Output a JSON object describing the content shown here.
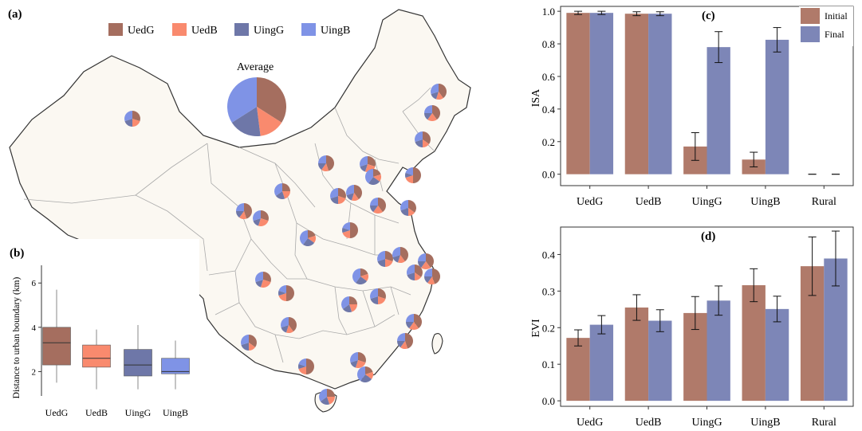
{
  "colors": {
    "UedG": "#a56e5f",
    "UedB": "#f98a6e",
    "UingG": "#6e77a8",
    "UingB": "#7f93e6",
    "initial": "#b07a6a",
    "final": "#7d86b7",
    "map_fill": "#fbf8f2",
    "map_border": "#333333",
    "province_line": "#a8a8a8",
    "axis": "#333333"
  },
  "panel_a": {
    "label": "(a)",
    "legend": [
      {
        "name": "UedG",
        "color_key": "UedG"
      },
      {
        "name": "UedB",
        "color_key": "UedB"
      },
      {
        "name": "UingG",
        "color_key": "UingG"
      },
      {
        "name": "UingB",
        "color_key": "UingB"
      }
    ],
    "average_label": "Average",
    "average_shares": [
      0.34,
      0.14,
      0.18,
      0.34
    ]
  },
  "chart_data": [
    {
      "panel": "(b)",
      "type": "box",
      "ylabel": "Distance to urban boundary (km)",
      "ylim": [
        0.9,
        6.8
      ],
      "yticks": [
        2,
        4,
        6
      ],
      "categories": [
        "UedG",
        "UedB",
        "UingG",
        "UingB"
      ],
      "boxes": [
        {
          "name": "UedG",
          "min": 1.5,
          "q1": 2.3,
          "median": 3.3,
          "q3": 4.0,
          "max": 5.7
        },
        {
          "name": "UedB",
          "min": 1.2,
          "q1": 2.2,
          "median": 2.6,
          "q3": 3.2,
          "max": 3.9
        },
        {
          "name": "UingG",
          "min": 1.2,
          "q1": 1.8,
          "median": 2.3,
          "q3": 3.0,
          "max": 4.1
        },
        {
          "name": "UingB",
          "min": 1.2,
          "q1": 1.9,
          "median": 2.0,
          "q3": 2.6,
          "max": 3.4
        }
      ]
    },
    {
      "panel": "(c)",
      "type": "bar",
      "ylabel": "ISA",
      "ylim": [
        -0.07,
        1.03
      ],
      "yticks": [
        0.0,
        0.2,
        0.4,
        0.6,
        0.8,
        1.0
      ],
      "categories": [
        "UedG",
        "UedB",
        "UingG",
        "UingB",
        "Rural"
      ],
      "series": [
        {
          "name": "Initial",
          "values": [
            0.99,
            0.985,
            0.17,
            0.09,
            0.0
          ],
          "errors": [
            0.01,
            0.012,
            0.085,
            0.045,
            0.0
          ]
        },
        {
          "name": "Final",
          "values": [
            0.99,
            0.985,
            0.78,
            0.825,
            0.0
          ],
          "errors": [
            0.01,
            0.012,
            0.095,
            0.075,
            0.0
          ]
        }
      ],
      "legend_position": "top-right"
    },
    {
      "panel": "(d)",
      "type": "bar",
      "ylabel": "EVI",
      "ylim": [
        -0.015,
        0.475
      ],
      "yticks": [
        0.0,
        0.1,
        0.2,
        0.3,
        0.4
      ],
      "categories": [
        "UedG",
        "UedB",
        "UingG",
        "UingB",
        "Rural"
      ],
      "series": [
        {
          "name": "Initial",
          "values": [
            0.172,
            0.255,
            0.24,
            0.316,
            0.368
          ],
          "errors": [
            0.022,
            0.035,
            0.045,
            0.045,
            0.08
          ]
        },
        {
          "name": "Final",
          "values": [
            0.208,
            0.219,
            0.274,
            0.251,
            0.389
          ],
          "errors": [
            0.025,
            0.03,
            0.04,
            0.035,
            0.075
          ]
        }
      ]
    }
  ],
  "map_pies": [
    [
      0.3,
      0.2,
      0.2,
      0.3
    ],
    [
      0.4,
      0.15,
      0.15,
      0.3
    ],
    [
      0.4,
      0.2,
      0.15,
      0.25
    ],
    [
      0.35,
      0.15,
      0.2,
      0.3
    ],
    [
      0.45,
      0.15,
      0.15,
      0.25
    ],
    [
      0.3,
      0.25,
      0.15,
      0.3
    ],
    [
      0.2,
      0.15,
      0.25,
      0.4
    ],
    [
      0.5,
      0.2,
      0.1,
      0.2
    ],
    [
      0.25,
      0.2,
      0.2,
      0.35
    ]
  ]
}
